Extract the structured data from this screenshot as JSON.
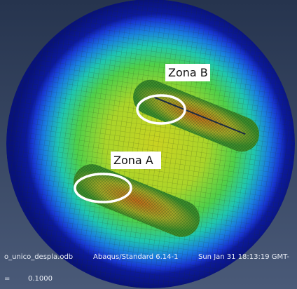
{
  "annotations": [
    {
      "label": "Zona B"
    },
    {
      "label": "Zona A"
    }
  ],
  "status_bar": {
    "file": "o_unico_despla.odb",
    "solver": "Abaqus/Standard 6.14-1",
    "date": "Sun Jan 31 18:13:19 GMT-"
  },
  "scale_line": {
    "prefix": "=",
    "value": "0.1000"
  }
}
